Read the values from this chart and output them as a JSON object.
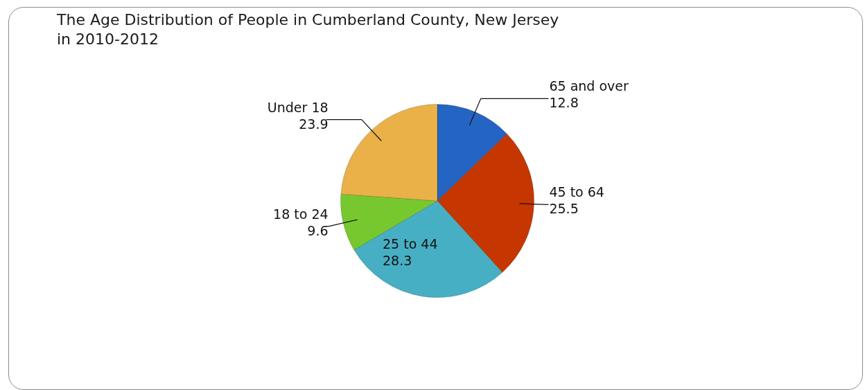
{
  "chart_data": {
    "type": "pie",
    "title": "The Age Distribution of People in Cumberland County, New Jersey in 2010-2012",
    "categories": [
      "65 and over",
      "45 to 64",
      "25 to 44",
      "18 to 24",
      "Under 18"
    ],
    "values": [
      12.8,
      25.5,
      28.3,
      9.6,
      23.9
    ],
    "colors": [
      "#2464c2",
      "#c53600",
      "#47afc3",
      "#77c82f",
      "#e9b147"
    ],
    "data_labels": true,
    "legend": false
  }
}
